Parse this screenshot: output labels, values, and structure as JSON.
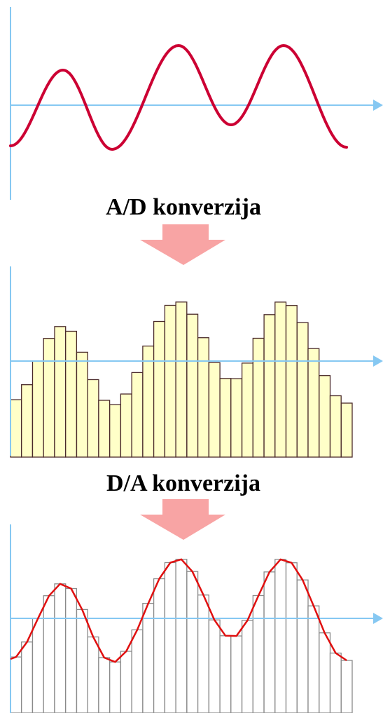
{
  "steps": [
    {
      "label": "A/D konverzija"
    },
    {
      "label": "D/A konverzija"
    }
  ]
}
